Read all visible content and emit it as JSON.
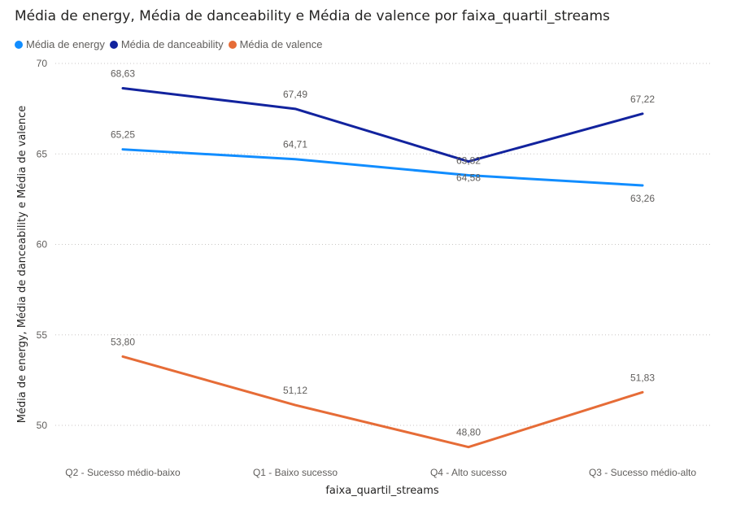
{
  "chart_data": {
    "type": "line",
    "title": "Média de energy, Média de danceability e Média de valence por faixa_quartil_streams",
    "xlabel": "faixa_quartil_streams",
    "ylabel": "Média de energy, Média de danceability e Média de valence",
    "categories": [
      "Q2 - Sucesso médio-baixo",
      "Q1 - Baixo sucesso",
      "Q4 - Alto sucesso",
      "Q3 - Sucesso médio-alto"
    ],
    "ylim": [
      48.8,
      70
    ],
    "yticks": [
      "50",
      "55",
      "60",
      "65",
      "70"
    ],
    "grid": true,
    "legend_position": "top-left",
    "series": [
      {
        "name": "Média de energy",
        "color": "#118DFF",
        "values": [
          65.25,
          64.71,
          63.82,
          63.26
        ],
        "labels": [
          "65,25",
          "64,71",
          "63,82",
          "63,26"
        ]
      },
      {
        "name": "Média de danceability",
        "color": "#12239E",
        "values": [
          68.63,
          67.49,
          64.58,
          67.22
        ],
        "labels": [
          "68,63",
          "67,49",
          "64,58",
          "67,22"
        ]
      },
      {
        "name": "Média de valence",
        "color": "#E66C37",
        "values": [
          53.8,
          51.12,
          48.8,
          51.83
        ],
        "labels": [
          "53,80",
          "51,12",
          "48,80",
          "51,83"
        ]
      }
    ]
  }
}
